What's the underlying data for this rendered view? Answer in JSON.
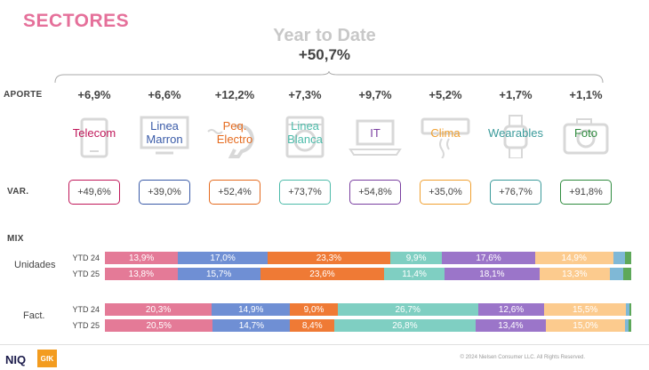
{
  "header": {
    "title": "SECTORES",
    "ytd_title": "Year to Date",
    "ytd_value": "+50,7%"
  },
  "labels": {
    "aporte": "APORTE",
    "var": "VAR.",
    "mix": "MIX",
    "unidades": "Unidades",
    "fact": "Fact.",
    "ytd24": "YTD 24",
    "ytd25": "YTD 25"
  },
  "sectors": [
    {
      "lines": [
        "Telecom"
      ],
      "aporte": "+6,9%",
      "var": "+49,6%",
      "color": "#c0185a",
      "icon": "phone-icon"
    },
    {
      "lines": [
        "Linea",
        "Marron"
      ],
      "aporte": "+6,6%",
      "var": "+39,0%",
      "color": "#3a5ba8",
      "icon": "tv-icon"
    },
    {
      "lines": [
        "Peq.",
        "Electro"
      ],
      "aporte": "+12,2%",
      "var": "+52,4%",
      "color": "#e56b1f",
      "icon": "small-appliance-icon"
    },
    {
      "lines": [
        "Linea",
        "Blanca"
      ],
      "aporte": "+7,3%",
      "var": "+73,7%",
      "color": "#4dbbaa",
      "icon": "washing-machine-icon"
    },
    {
      "lines": [
        "IT"
      ],
      "aporte": "+9,7%",
      "var": "+54,8%",
      "color": "#7a3fa0",
      "icon": "laptop-icon"
    },
    {
      "lines": [
        "Clima"
      ],
      "aporte": "+5,2%",
      "var": "+35,0%",
      "color": "#f0a030",
      "icon": "air-conditioner-icon"
    },
    {
      "lines": [
        "Wearables"
      ],
      "aporte": "+1,7%",
      "var": "+76,7%",
      "color": "#3a9a9a",
      "icon": "smartwatch-icon"
    },
    {
      "lines": [
        "Foto"
      ],
      "aporte": "+1,1%",
      "var": "+91,8%",
      "color": "#2e8b3e",
      "icon": "camera-icon"
    }
  ],
  "mix_colors": [
    "#e47a97",
    "#6f8fd4",
    "#ef7a35",
    "#7fcfc2",
    "#9b75c9",
    "#fccb8e",
    "#7fb8d6",
    "#5ea85a"
  ],
  "chart_data": {
    "type": "bar",
    "stacked": true,
    "orientation": "horizontal",
    "categories": [
      "Telecom",
      "Linea Marron",
      "Peq. Electro",
      "Linea Blanca",
      "IT",
      "Clima",
      "Wearables",
      "Foto"
    ],
    "groups": [
      {
        "name": "Unidades",
        "rows": [
          {
            "label": "YTD 24",
            "values": [
              13.9,
              17.0,
              23.3,
              9.9,
              17.6,
              14.9,
              2.2,
              1.2
            ],
            "labels": [
              "13,9%",
              "17,0%",
              "23,3%",
              "9,9%",
              "17,6%",
              "14,9%",
              "",
              ""
            ]
          },
          {
            "label": "YTD 25",
            "values": [
              13.8,
              15.7,
              23.6,
              11.4,
              18.1,
              13.3,
              2.6,
              1.5
            ],
            "labels": [
              "13,8%",
              "15,7%",
              "23,6%",
              "11,4%",
              "18,1%",
              "13,3%",
              "",
              ""
            ]
          }
        ]
      },
      {
        "name": "Fact.",
        "rows": [
          {
            "label": "YTD 24",
            "values": [
              20.3,
              14.9,
              9.0,
              26.7,
              12.6,
              15.5,
              0.6,
              0.4
            ],
            "labels": [
              "20,3%",
              "14,9%",
              "9,0%",
              "26,7%",
              "12,6%",
              "15,5%",
              "",
              ""
            ]
          },
          {
            "label": "YTD 25",
            "values": [
              20.5,
              14.7,
              8.4,
              26.8,
              13.4,
              15.0,
              0.7,
              0.5
            ],
            "labels": [
              "20,5%",
              "14,7%",
              "8,4%",
              "26,8%",
              "13,4%",
              "15,0%",
              "",
              ""
            ]
          }
        ]
      }
    ]
  },
  "footer": {
    "copyright": "© 2024 Nielsen Consumer LLC. All Rights Reserved.",
    "logo_niq": "NIQ",
    "logo_gfk": "GfK"
  }
}
